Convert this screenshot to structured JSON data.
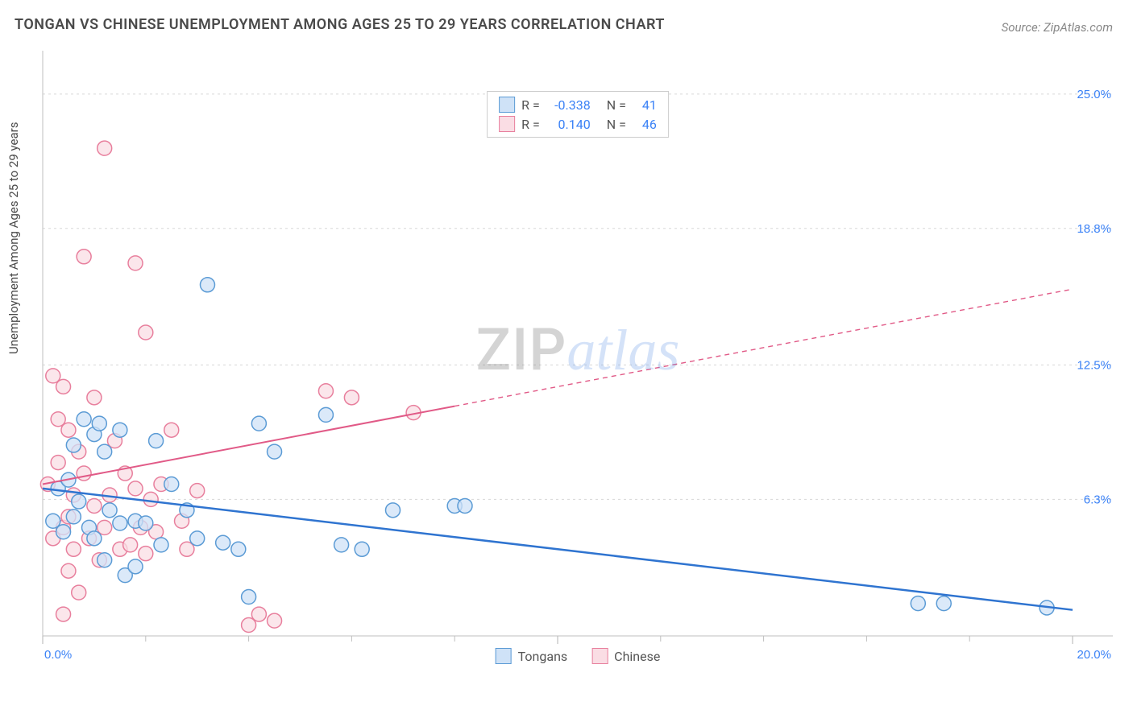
{
  "title": "TONGAN VS CHINESE UNEMPLOYMENT AMONG AGES 25 TO 29 YEARS CORRELATION CHART",
  "source": "Source: ZipAtlas.com",
  "y_axis_label": "Unemployment Among Ages 25 to 29 years",
  "watermark_zip": "ZIP",
  "watermark_atlas": "atlas",
  "chart": {
    "type": "scatter",
    "background_color": "#ffffff",
    "grid_color": "#d8d8d8",
    "axis_color": "#bfbfbf",
    "xlim": [
      0,
      20
    ],
    "ylim": [
      0,
      27
    ],
    "x_ticks": [
      0,
      10,
      20
    ],
    "x_tick_labels": [
      "0.0%",
      "",
      "20.0%"
    ],
    "x_minor_ticks": [
      2,
      4,
      6,
      8,
      12,
      14,
      16,
      18
    ],
    "y_ticks": [
      6.3,
      12.5,
      18.8,
      25.0
    ],
    "y_tick_labels": [
      "6.3%",
      "12.5%",
      "18.8%",
      "25.0%"
    ],
    "tick_label_color": "#3b82f6",
    "tick_label_fontsize": 15,
    "marker_radius": 9,
    "marker_stroke_width": 1.5,
    "series": [
      {
        "name": "Tongans",
        "color_fill": "#cfe2f7",
        "color_stroke": "#5b9bd5",
        "r": -0.338,
        "n": 41,
        "trend_line": {
          "x1": 0,
          "y1": 6.8,
          "x2": 20,
          "y2": 1.2,
          "solid_until_x": 20,
          "color": "#2f74d0",
          "width": 2.5
        },
        "points": [
          [
            0.2,
            5.3
          ],
          [
            0.3,
            6.8
          ],
          [
            0.4,
            4.8
          ],
          [
            0.5,
            7.2
          ],
          [
            0.6,
            8.8
          ],
          [
            0.6,
            5.5
          ],
          [
            0.7,
            6.2
          ],
          [
            0.8,
            10.0
          ],
          [
            0.9,
            5.0
          ],
          [
            1.0,
            9.3
          ],
          [
            1.0,
            4.5
          ],
          [
            1.1,
            9.8
          ],
          [
            1.2,
            8.5
          ],
          [
            1.2,
            3.5
          ],
          [
            1.3,
            5.8
          ],
          [
            1.5,
            9.5
          ],
          [
            1.5,
            5.2
          ],
          [
            1.6,
            2.8
          ],
          [
            1.8,
            5.3
          ],
          [
            1.8,
            3.2
          ],
          [
            2.0,
            5.2
          ],
          [
            2.2,
            9.0
          ],
          [
            2.3,
            4.2
          ],
          [
            2.5,
            7.0
          ],
          [
            2.8,
            5.8
          ],
          [
            3.0,
            4.5
          ],
          [
            3.2,
            16.2
          ],
          [
            3.5,
            4.3
          ],
          [
            3.8,
            4.0
          ],
          [
            4.0,
            1.8
          ],
          [
            4.2,
            9.8
          ],
          [
            4.5,
            8.5
          ],
          [
            5.5,
            10.2
          ],
          [
            5.8,
            4.2
          ],
          [
            6.2,
            4.0
          ],
          [
            6.8,
            5.8
          ],
          [
            8.0,
            6.0
          ],
          [
            8.2,
            6.0
          ],
          [
            17.0,
            1.5
          ],
          [
            17.5,
            1.5
          ],
          [
            19.5,
            1.3
          ]
        ]
      },
      {
        "name": "Chinese",
        "color_fill": "#fadde4",
        "color_stroke": "#e87f9d",
        "r": 0.14,
        "n": 46,
        "trend_line": {
          "x1": 0,
          "y1": 7.0,
          "x2": 20,
          "y2": 16.0,
          "solid_until_x": 8,
          "color": "#e15a87",
          "width": 2
        },
        "points": [
          [
            0.1,
            7.0
          ],
          [
            0.2,
            12.0
          ],
          [
            0.2,
            4.5
          ],
          [
            0.3,
            10.0
          ],
          [
            0.3,
            8.0
          ],
          [
            0.4,
            11.5
          ],
          [
            0.4,
            5.0
          ],
          [
            0.4,
            1.0
          ],
          [
            0.5,
            9.5
          ],
          [
            0.5,
            5.5
          ],
          [
            0.5,
            3.0
          ],
          [
            0.6,
            6.5
          ],
          [
            0.6,
            4.0
          ],
          [
            0.7,
            8.5
          ],
          [
            0.7,
            2.0
          ],
          [
            0.8,
            7.5
          ],
          [
            0.8,
            17.5
          ],
          [
            0.9,
            4.5
          ],
          [
            1.0,
            11.0
          ],
          [
            1.0,
            6.0
          ],
          [
            1.1,
            3.5
          ],
          [
            1.2,
            22.5
          ],
          [
            1.2,
            5.0
          ],
          [
            1.3,
            6.5
          ],
          [
            1.4,
            9.0
          ],
          [
            1.5,
            4.0
          ],
          [
            1.6,
            7.5
          ],
          [
            1.7,
            4.2
          ],
          [
            1.8,
            17.2
          ],
          [
            1.8,
            6.8
          ],
          [
            1.9,
            5.0
          ],
          [
            2.0,
            14.0
          ],
          [
            2.0,
            3.8
          ],
          [
            2.1,
            6.3
          ],
          [
            2.2,
            4.8
          ],
          [
            2.3,
            7.0
          ],
          [
            2.5,
            9.5
          ],
          [
            2.7,
            5.3
          ],
          [
            2.8,
            4.0
          ],
          [
            3.0,
            6.7
          ],
          [
            4.0,
            0.5
          ],
          [
            4.2,
            1.0
          ],
          [
            5.5,
            11.3
          ],
          [
            6.0,
            11.0
          ],
          [
            7.2,
            10.3
          ],
          [
            4.5,
            0.7
          ]
        ]
      }
    ],
    "bottom_legend": [
      {
        "label": "Tongans",
        "fill": "#cfe2f7",
        "stroke": "#5b9bd5"
      },
      {
        "label": "Chinese",
        "fill": "#fadde4",
        "stroke": "#e87f9d"
      }
    ]
  }
}
